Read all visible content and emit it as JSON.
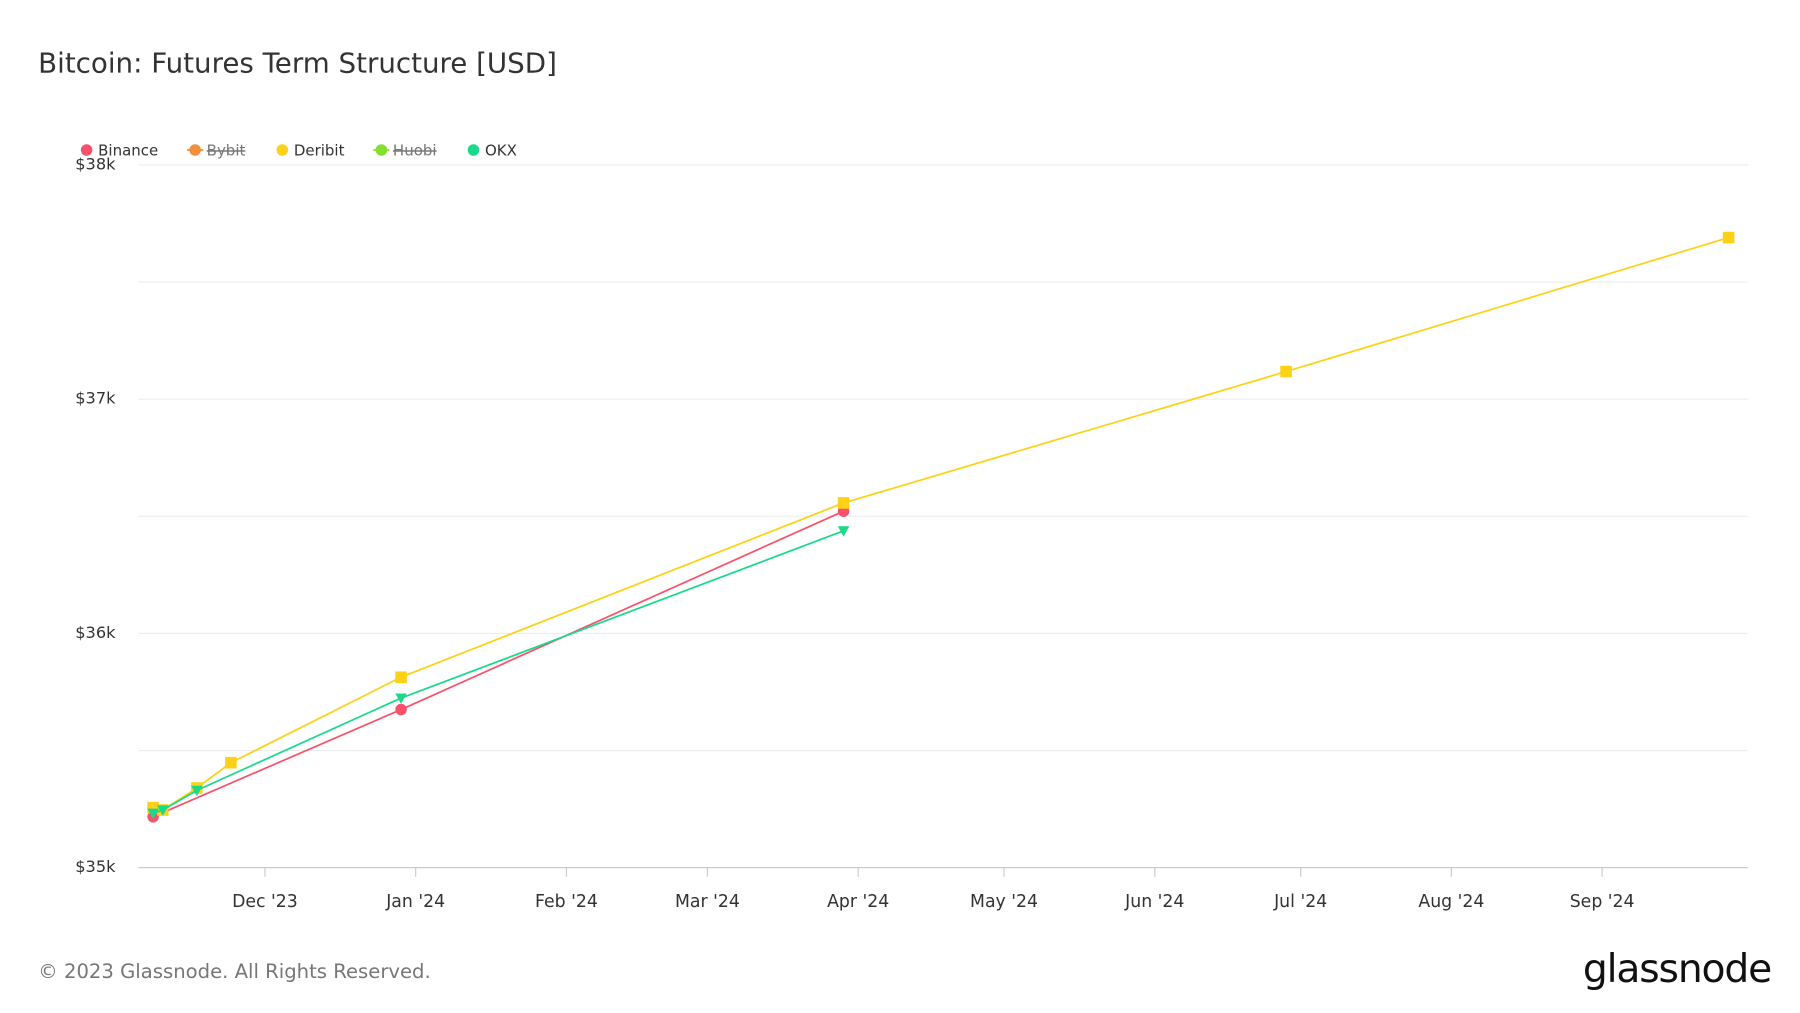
{
  "chart_data": {
    "type": "line",
    "title": "Bitcoin: Futures Term Structure [USD]",
    "xlim": [
      1699142400000,
      1727740800000
    ],
    "xticks": [
      {
        "value": 1701388800000,
        "label": "Dec '23"
      },
      {
        "value": 1704067200000,
        "label": "Jan '24"
      },
      {
        "value": 1706745600000,
        "label": "Feb '24"
      },
      {
        "value": 1709251200000,
        "label": "Mar '24"
      },
      {
        "value": 1711929600000,
        "label": "Apr '24"
      },
      {
        "value": 1714521600000,
        "label": "May '24"
      },
      {
        "value": 1717200000000,
        "label": "Jun '24"
      },
      {
        "value": 1719792000000,
        "label": "Jul '24"
      },
      {
        "value": 1722470400000,
        "label": "Aug '24"
      },
      {
        "value": 1725148800000,
        "label": "Sep '24"
      }
    ],
    "ylim": [
      35000,
      38000
    ],
    "yticks": [
      {
        "value": 35000,
        "label": "$35k"
      },
      {
        "value": 36000,
        "label": "$36k"
      },
      {
        "value": 37000,
        "label": "$37k"
      },
      {
        "value": 38000,
        "label": "$38k"
      }
    ],
    "yminor": [
      35500,
      36500,
      37500
    ],
    "grid": true,
    "legend": "top-left",
    "series": [
      {
        "name": "Binance",
        "color": "#f7526b",
        "marker": "circle",
        "hidden": false,
        "x": [
          1699401600000,
          1703808000000,
          1711670400000
        ],
        "values": [
          35217,
          35675,
          36522
        ]
      },
      {
        "name": "Bybit",
        "color": "#f0903a",
        "marker": "circle",
        "hidden": true,
        "x": [],
        "values": []
      },
      {
        "name": "Deribit",
        "color": "#fcd116",
        "marker": "square",
        "hidden": false,
        "x": [
          1699401600000,
          1699574400000,
          1700179200000,
          1700784000000,
          1703808000000,
          1711670400000,
          1719532800000,
          1727395200000
        ],
        "values": [
          35256,
          35246,
          35340,
          35448,
          35813,
          36557,
          37118,
          37690
        ]
      },
      {
        "name": "Huobi",
        "color": "#83e02d",
        "marker": "circle",
        "hidden": true,
        "x": [],
        "values": []
      },
      {
        "name": "OKX",
        "color": "#19d98b",
        "marker": "triangle",
        "hidden": false,
        "x": [
          1699401600000,
          1699574400000,
          1700179200000,
          1703808000000,
          1711670400000
        ],
        "values": [
          35232,
          35246,
          35330,
          35724,
          36438
        ]
      }
    ]
  },
  "footer": {
    "copyright": "© 2023 Glassnode. All Rights Reserved.",
    "logo": "glassnode"
  }
}
